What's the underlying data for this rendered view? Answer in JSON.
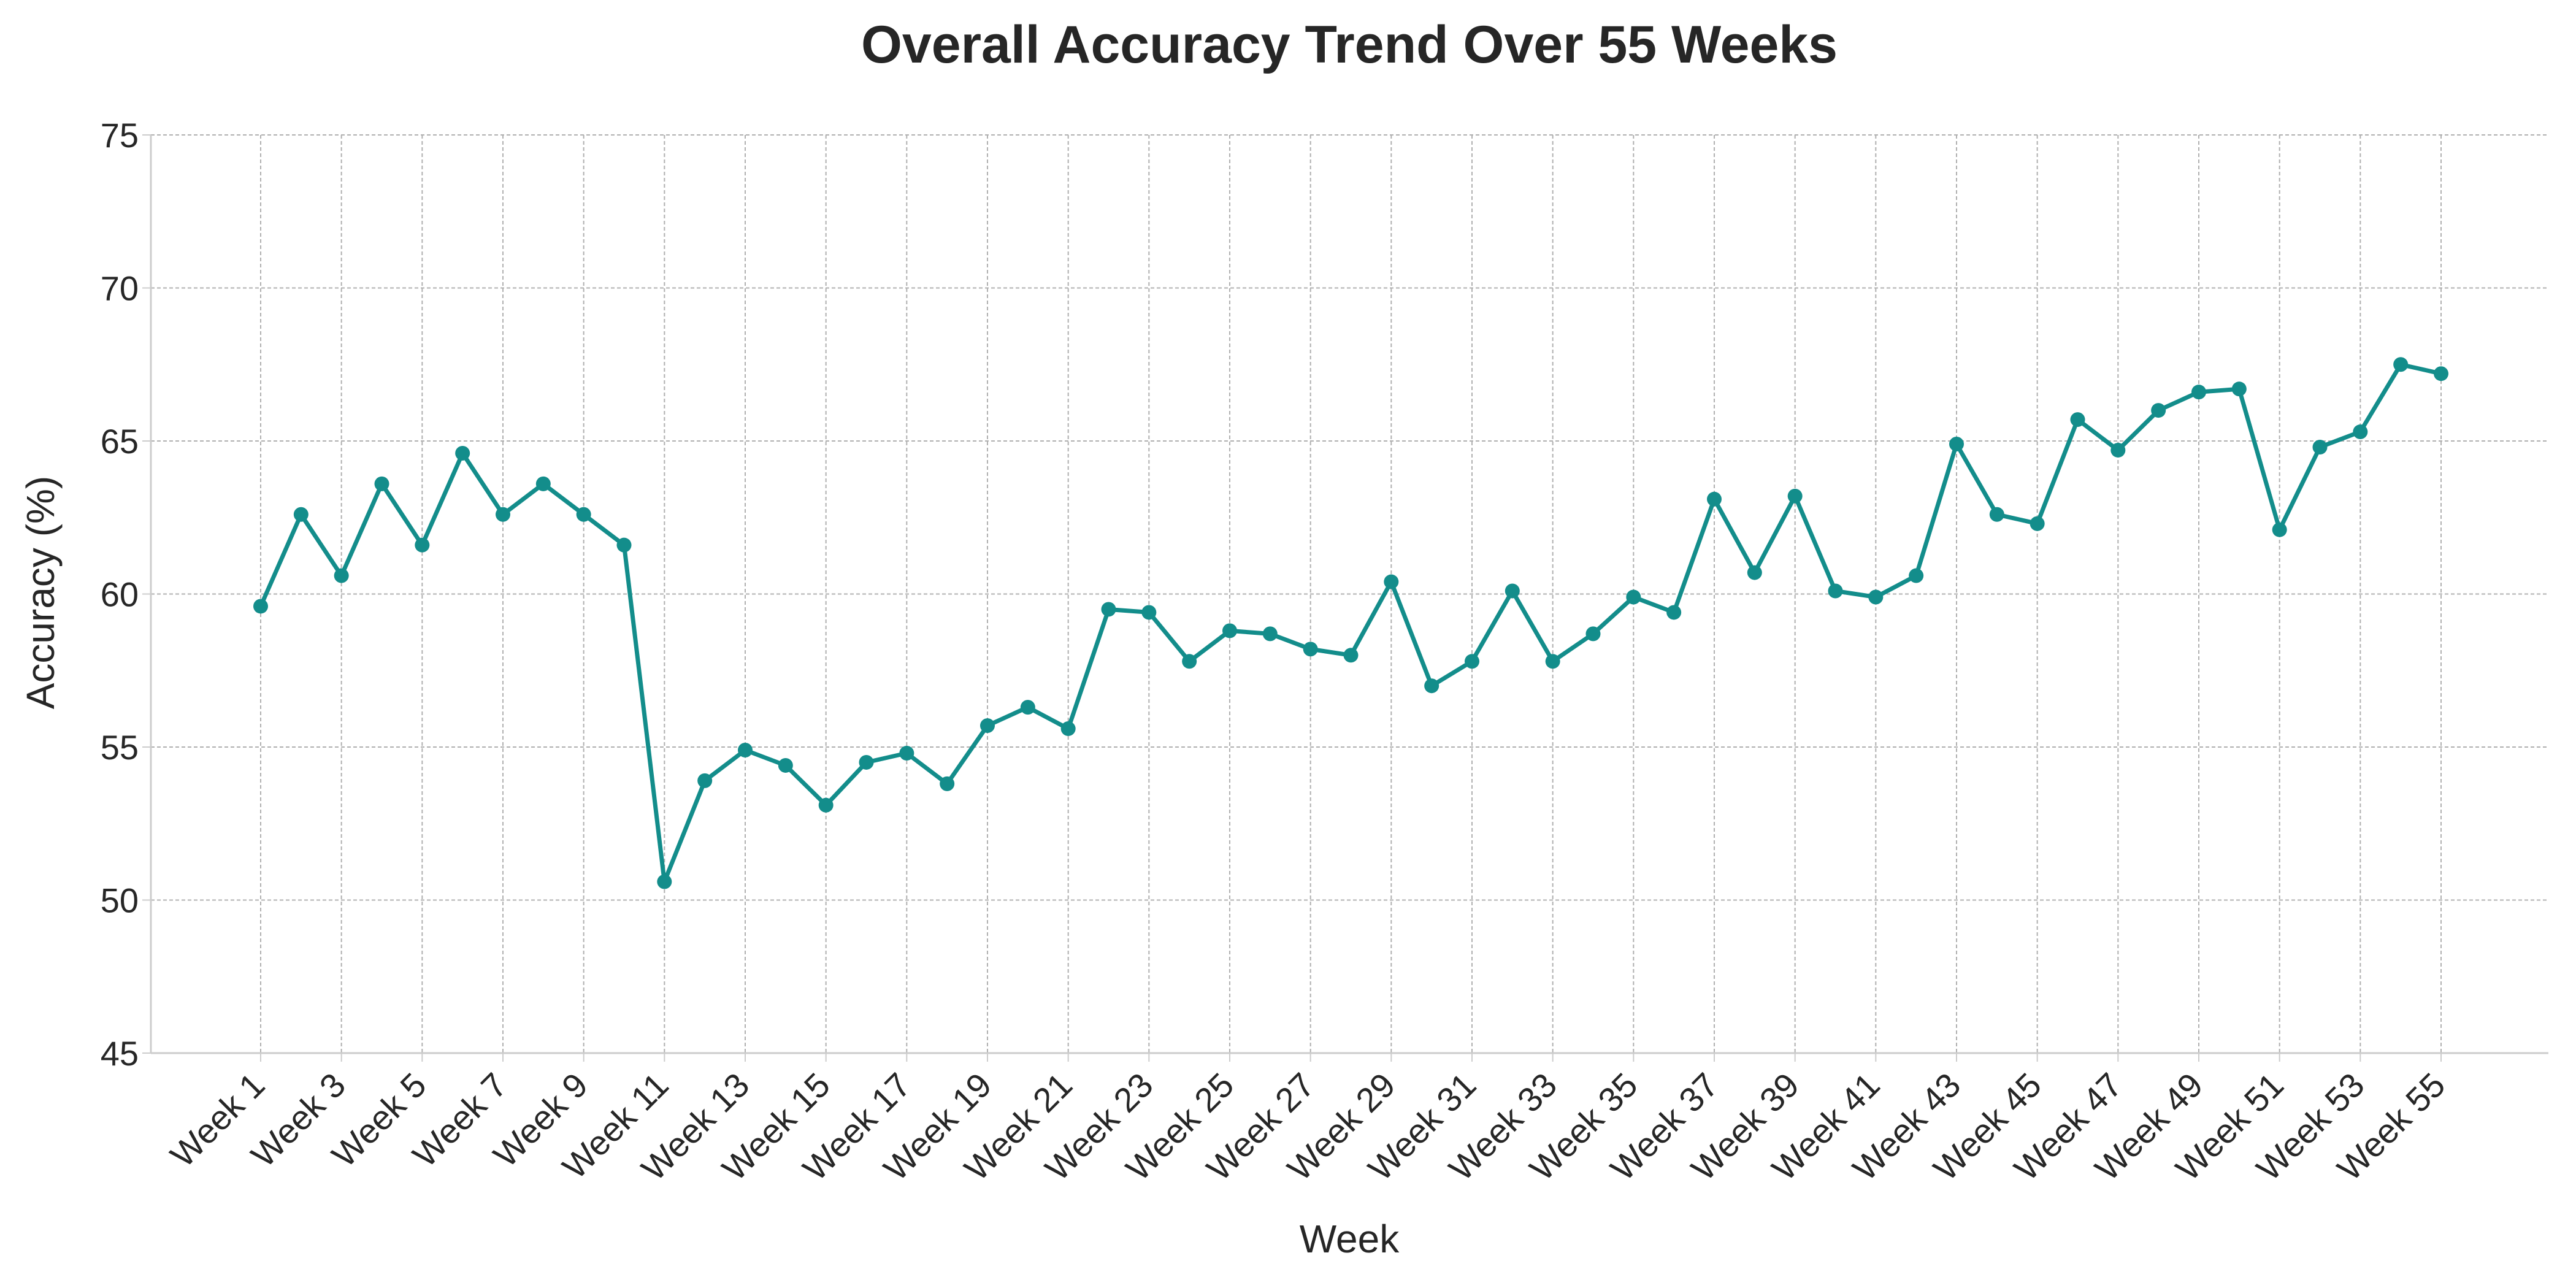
{
  "chart_data": {
    "type": "line",
    "title": "Overall Accuracy Trend Over 55 Weeks",
    "xlabel": "Week",
    "ylabel": "Accuracy (%)",
    "ylim": [
      45,
      75
    ],
    "yticks": [
      45,
      50,
      55,
      60,
      65,
      70,
      75
    ],
    "grid": true,
    "legend": "none",
    "line_color": "#138d8b",
    "x": [
      "Week 1",
      "Week 2",
      "Week 3",
      "Week 4",
      "Week 5",
      "Week 6",
      "Week 7",
      "Week 8",
      "Week 9",
      "Week 10",
      "Week 11",
      "Week 12",
      "Week 13",
      "Week 14",
      "Week 15",
      "Week 16",
      "Week 17",
      "Week 18",
      "Week 19",
      "Week 20",
      "Week 21",
      "Week 22",
      "Week 23",
      "Week 24",
      "Week 25",
      "Week 26",
      "Week 27",
      "Week 28",
      "Week 29",
      "Week 30",
      "Week 31",
      "Week 32",
      "Week 33",
      "Week 34",
      "Week 35",
      "Week 36",
      "Week 37",
      "Week 38",
      "Week 39",
      "Week 40",
      "Week 41",
      "Week 42",
      "Week 43",
      "Week 44",
      "Week 45",
      "Week 46",
      "Week 47",
      "Week 48",
      "Week 49",
      "Week 50",
      "Week 51",
      "Week 52",
      "Week 53",
      "Week 54",
      "Week 55"
    ],
    "xtick_labels": [
      "Week 1",
      "Week 3",
      "Week 5",
      "Week 7",
      "Week 9",
      "Week 11",
      "Week 13",
      "Week 15",
      "Week 17",
      "Week 19",
      "Week 21",
      "Week 23",
      "Week 25",
      "Week 27",
      "Week 29",
      "Week 31",
      "Week 33",
      "Week 35",
      "Week 37",
      "Week 39",
      "Week 41",
      "Week 43",
      "Week 45",
      "Week 47",
      "Week 49",
      "Week 51",
      "Week 53",
      "Week 55"
    ],
    "series": [
      {
        "values": [
          59.6,
          62.6,
          60.6,
          63.6,
          61.6,
          64.6,
          62.6,
          63.6,
          62.6,
          61.6,
          50.6,
          53.9,
          54.9,
          54.4,
          53.1,
          54.5,
          54.8,
          53.8,
          55.7,
          56.3,
          55.6,
          59.5,
          59.4,
          57.8,
          58.8,
          58.7,
          58.2,
          58.0,
          60.4,
          57.0,
          57.8,
          60.1,
          57.8,
          58.7,
          59.9,
          59.4,
          63.1,
          60.7,
          63.2,
          60.1,
          59.9,
          60.6,
          64.9,
          62.6,
          62.3,
          65.7,
          64.7,
          66.0,
          66.6,
          66.7,
          62.1,
          64.8,
          65.3,
          67.5,
          67.2
        ]
      }
    ]
  }
}
